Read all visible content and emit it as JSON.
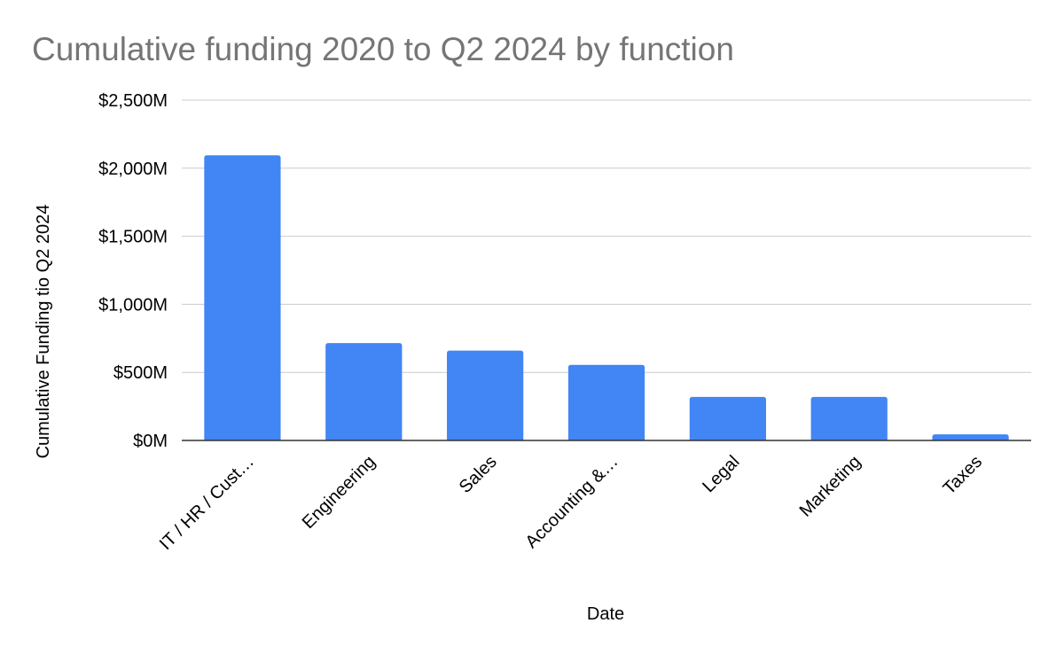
{
  "chart_data": {
    "type": "bar",
    "title": "Cumulative funding 2020 to Q2 2024 by function",
    "xlabel": "Date",
    "ylabel": "Cumulative Funding tio Q2 2024",
    "categories": [
      "IT / HR / Cust…",
      "Engineering",
      "Sales",
      "Accounting &…",
      "Legal",
      "Marketing",
      "Taxes"
    ],
    "values": [
      2095,
      715,
      660,
      555,
      320,
      320,
      45
    ],
    "ylim": [
      0,
      2500
    ],
    "yticks": [
      0,
      500,
      1000,
      1500,
      2000,
      2500
    ],
    "ytick_labels": [
      "$0M",
      "$500M",
      "$1,000M",
      "$1,500M",
      "$2,000M",
      "$2,500M"
    ],
    "bar_color": "#4285f4",
    "grid": true,
    "legend": "none"
  }
}
